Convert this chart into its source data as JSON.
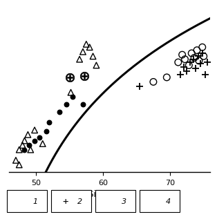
{
  "xlabel": "SiO₂, wt.%",
  "xlim": [
    46,
    76
  ],
  "ylim": [
    1.5,
    12.5
  ],
  "background_color": "#ffffff",
  "series1_filled_circles": [
    [
      48.2,
      3.0
    ],
    [
      49.0,
      3.3
    ],
    [
      49.8,
      3.6
    ],
    [
      50.5,
      3.8
    ],
    [
      51.5,
      4.2
    ],
    [
      52.0,
      4.8
    ],
    [
      53.5,
      5.5
    ],
    [
      54.5,
      6.0
    ],
    [
      55.5,
      6.5
    ],
    [
      57.0,
      6.0
    ]
  ],
  "series2_plus": [
    [
      65.5,
      7.2
    ],
    [
      71.5,
      8.0
    ],
    [
      72.0,
      8.5
    ],
    [
      72.5,
      8.2
    ],
    [
      73.0,
      8.8
    ],
    [
      73.5,
      9.0
    ],
    [
      73.8,
      8.4
    ],
    [
      74.2,
      9.2
    ],
    [
      74.5,
      8.7
    ],
    [
      74.8,
      9.4
    ],
    [
      75.2,
      8.0
    ],
    [
      75.5,
      8.8
    ]
  ],
  "series3_triangles": [
    [
      47.0,
      2.3
    ],
    [
      47.5,
      3.0
    ],
    [
      48.0,
      3.3
    ],
    [
      48.3,
      3.6
    ],
    [
      48.8,
      4.0
    ],
    [
      49.2,
      3.0
    ],
    [
      49.8,
      4.3
    ],
    [
      51.0,
      3.4
    ],
    [
      55.2,
      6.8
    ],
    [
      56.5,
      9.0
    ],
    [
      57.0,
      9.5
    ],
    [
      57.5,
      10.0
    ],
    [
      58.0,
      9.8
    ],
    [
      58.5,
      9.2
    ],
    [
      59.0,
      8.6
    ],
    [
      47.5,
      2.0
    ]
  ],
  "series4_open_circles": [
    [
      67.5,
      7.5
    ],
    [
      69.5,
      7.8
    ],
    [
      71.2,
      8.8
    ],
    [
      71.8,
      9.3
    ],
    [
      72.2,
      9.0
    ],
    [
      72.8,
      8.6
    ],
    [
      73.2,
      9.4
    ],
    [
      73.6,
      9.1
    ],
    [
      74.0,
      9.6
    ],
    [
      74.3,
      8.9
    ],
    [
      74.8,
      9.8
    ],
    [
      75.0,
      9.2
    ]
  ],
  "series5_circled_plus": [
    [
      55.0,
      7.8
    ],
    [
      57.2,
      7.9
    ]
  ],
  "xticks": [
    50,
    60,
    70
  ],
  "xtick_labels": [
    "50",
    "60",
    "70"
  ]
}
